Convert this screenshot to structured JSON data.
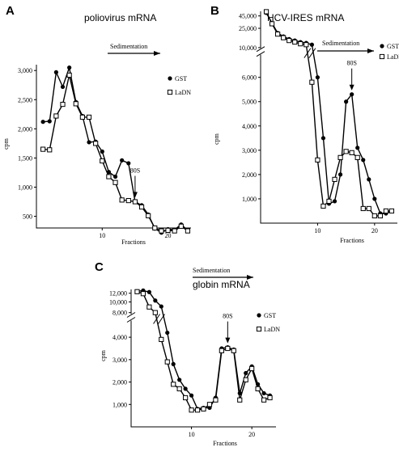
{
  "chart_data": [
    {
      "panel": "A",
      "title": "poliovirus mRNA",
      "type": "line",
      "xlabel": "Fractions",
      "ylabel": "cpm",
      "arrow_label": "Sedimentation",
      "annotation": {
        "text": "80S",
        "x": 15
      },
      "xlim": [
        0,
        23.5
      ],
      "ylim": [
        300,
        3100
      ],
      "x_ticks": [
        10,
        20
      ],
      "y_ticks": [
        500,
        1000,
        1500,
        2000,
        2500,
        3000
      ],
      "y_tick_labels": [
        "500",
        "1,000",
        "1,500",
        "2,000",
        "2,500",
        "3,000"
      ],
      "legend": "right",
      "series": [
        {
          "name": "GST",
          "marker": "circle",
          "x": [
            1,
            2,
            3,
            4,
            5,
            6,
            7,
            8,
            9,
            10,
            11,
            12,
            13,
            14,
            15,
            16,
            17,
            18,
            19,
            20,
            21,
            22,
            23
          ],
          "y": [
            2120,
            2130,
            2970,
            2720,
            3050,
            2460,
            2220,
            1770,
            1780,
            1610,
            1260,
            1180,
            1460,
            1410,
            750,
            690,
            530,
            290,
            220,
            280,
            270,
            360,
            260
          ]
        },
        {
          "name": "LaDN",
          "marker": "square",
          "x": [
            1,
            2,
            3,
            4,
            5,
            6,
            7,
            8,
            9,
            10,
            11,
            12,
            13,
            14,
            15,
            16,
            17,
            18,
            19,
            20,
            21,
            22,
            23
          ],
          "y": [
            1650,
            1640,
            2220,
            2420,
            2920,
            2430,
            2200,
            2200,
            1750,
            1450,
            1180,
            1080,
            780,
            770,
            750,
            660,
            510,
            300,
            250,
            260,
            250,
            330,
            250
          ]
        }
      ]
    },
    {
      "panel": "B",
      "title": "HCV-IRES mRNA",
      "type": "line",
      "xlabel": "Fractions",
      "ylabel": "cpm",
      "arrow_label": "Sedimentation",
      "annotation": {
        "text": "80S",
        "x": 16
      },
      "xlim": [
        0,
        24
      ],
      "y_break": true,
      "y_ticks_lower": [
        1000,
        2000,
        3000,
        4000,
        5000,
        6000
      ],
      "y_tick_labels_lower": [
        "1,000",
        "2,000",
        "3,000",
        "4,000",
        "5,000",
        "6,000"
      ],
      "y_ticks_upper": [
        10000,
        25000,
        45000
      ],
      "y_tick_labels_upper": [
        "10,000",
        "25,000",
        "45,000"
      ],
      "x_ticks": [
        10,
        20
      ],
      "legend": "top-right",
      "series": [
        {
          "name": "GST",
          "marker": "circle",
          "x": [
            1,
            2,
            3,
            4,
            5,
            6,
            7,
            8,
            9,
            10,
            11,
            12,
            13,
            14,
            15,
            16,
            17,
            18,
            19,
            20,
            21,
            22,
            23
          ],
          "y": [
            52000,
            32000,
            20000,
            17000,
            15000,
            14000,
            13000,
            12500,
            11500,
            6000,
            3500,
            800,
            900,
            2000,
            5000,
            5300,
            3100,
            2600,
            1800,
            1000,
            400,
            400,
            500
          ]
        },
        {
          "name": "LaDN",
          "marker": "square",
          "x": [
            1,
            2,
            3,
            4,
            5,
            6,
            7,
            8,
            9,
            10,
            11,
            12,
            13,
            14,
            15,
            16,
            17,
            18,
            19,
            20,
            21,
            22,
            23
          ],
          "y": [
            55000,
            31000,
            19000,
            16000,
            14000,
            13000,
            12000,
            11500,
            5800,
            2600,
            700,
            900,
            1800,
            2700,
            2950,
            2900,
            2700,
            600,
            600,
            300,
            300,
            500,
            500
          ]
        }
      ]
    },
    {
      "panel": "C",
      "title": "globin mRNA",
      "type": "line",
      "xlabel": "Fractions",
      "ylabel": "cpm",
      "arrow_label": "Sedimentation",
      "annotation": {
        "text": "80S",
        "x": 16
      },
      "xlim": [
        0,
        24
      ],
      "y_break": true,
      "y_ticks_lower": [
        1000,
        2000,
        3000,
        4000
      ],
      "y_tick_labels_lower": [
        "1,000",
        "2,000",
        "3,000",
        "4,000"
      ],
      "y_ticks_upper": [
        8000,
        10000,
        12000
      ],
      "y_tick_labels_upper": [
        "8,000",
        "10,000",
        "12,000"
      ],
      "x_ticks": [
        10,
        20
      ],
      "legend": "right",
      "series": [
        {
          "name": "GST",
          "marker": "circle",
          "x": [
            1,
            2,
            3,
            4,
            5,
            6,
            7,
            8,
            9,
            10,
            11,
            12,
            13,
            14,
            15,
            16,
            17,
            18,
            19,
            20,
            21,
            22,
            23
          ],
          "y": [
            12500,
            12700,
            12300,
            10300,
            9100,
            4200,
            2800,
            2100,
            1700,
            1400,
            800,
            850,
            850,
            1300,
            3500,
            3550,
            3450,
            1500,
            2400,
            2700,
            1900,
            1500,
            1400
          ]
        },
        {
          "name": "LaDN",
          "marker": "square",
          "x": [
            1,
            2,
            3,
            4,
            5,
            6,
            7,
            8,
            9,
            10,
            11,
            12,
            13,
            14,
            15,
            16,
            17,
            18,
            19,
            20,
            21,
            22,
            23
          ],
          "y": [
            12400,
            11900,
            9000,
            8000,
            3900,
            2900,
            1900,
            1700,
            1300,
            750,
            750,
            800,
            1000,
            1200,
            3400,
            3500,
            3400,
            1200,
            2100,
            2600,
            1700,
            1200,
            1300
          ]
        }
      ]
    }
  ]
}
